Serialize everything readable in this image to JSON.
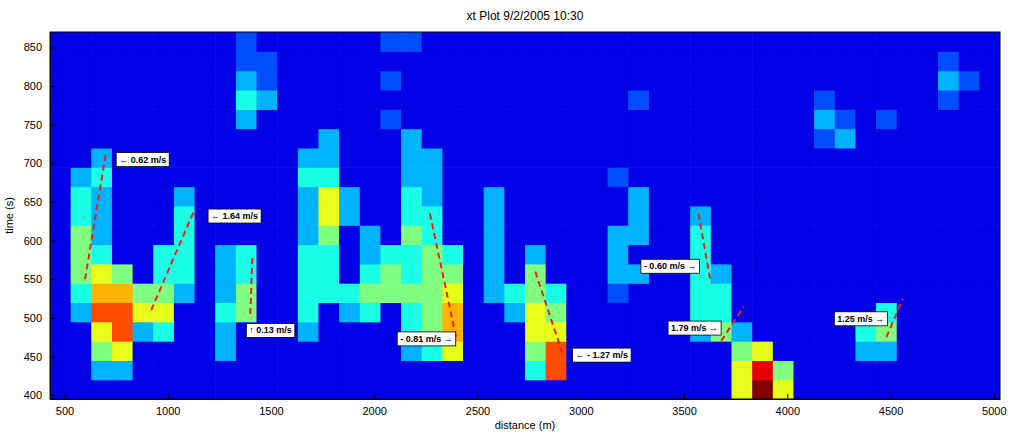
{
  "chart_data": {
    "type": "heatmap",
    "title": "xt Plot 9/2/2005 10:30",
    "x_label": "distance (m)",
    "y_label": "time (s)",
    "xlim": [
      430,
      5030
    ],
    "ylim": [
      395,
      870
    ],
    "xticks": [
      500,
      1000,
      1500,
      2000,
      2500,
      3000,
      3500,
      4000,
      4500,
      5000
    ],
    "yticks": [
      400,
      450,
      500,
      550,
      600,
      650,
      700,
      750,
      800,
      850
    ],
    "color": "jet",
    "line_style": "dashed",
    "zlim": [
      0,
      10
    ],
    "x_bins": [
      430,
      530,
      630,
      730,
      830,
      930,
      1030,
      1130,
      1230,
      1330,
      1430,
      1530,
      1630,
      1730,
      1830,
      1930,
      2030,
      2130,
      2230,
      2330,
      2430,
      2530,
      2630,
      2730,
      2830,
      2930,
      3030,
      3130,
      3230,
      3330,
      3430,
      3530,
      3630,
      3730,
      3830,
      3930,
      4030,
      4130,
      4230,
      4330,
      4430,
      4530,
      4630,
      4730,
      4830,
      4930,
      5030
    ],
    "y_bins": [
      395,
      420,
      445,
      470,
      495,
      520,
      545,
      570,
      595,
      620,
      645,
      670,
      695,
      720,
      745,
      770,
      795,
      820,
      845,
      870
    ],
    "values": [
      [
        1,
        1,
        1,
        1,
        1,
        1,
        1,
        1,
        1,
        1,
        1,
        1,
        1,
        1,
        1,
        1,
        1,
        1,
        1,
        1,
        1,
        1,
        1,
        1,
        1,
        1,
        1,
        1,
        1,
        1,
        1,
        1,
        1,
        6,
        10,
        6,
        1,
        1,
        1,
        1,
        1,
        1,
        1,
        1,
        1,
        1
      ],
      [
        1,
        1,
        3,
        3,
        1,
        1,
        1,
        1,
        1,
        1,
        1,
        1,
        1,
        1,
        1,
        1,
        1,
        1,
        1,
        1,
        1,
        1,
        1,
        4,
        8,
        1,
        1,
        1,
        1,
        1,
        1,
        1,
        1,
        6,
        9,
        5,
        1,
        1,
        1,
        1,
        1,
        1,
        1,
        1,
        1,
        1
      ],
      [
        1,
        1,
        5,
        6,
        1,
        1,
        1,
        1,
        3,
        1,
        1,
        1,
        1,
        1,
        1,
        1,
        1,
        3,
        4,
        6,
        1,
        1,
        1,
        5,
        8,
        1,
        1,
        1,
        1,
        1,
        1,
        1,
        1,
        5,
        6,
        1,
        1,
        1,
        1,
        3,
        3,
        1,
        1,
        1,
        1,
        1
      ],
      [
        1,
        1,
        6,
        8,
        3,
        4,
        1,
        1,
        3,
        1,
        1,
        1,
        3,
        1,
        1,
        1,
        1,
        4,
        5,
        7,
        1,
        1,
        1,
        6,
        6,
        1,
        1,
        1,
        1,
        1,
        1,
        3,
        5,
        3,
        1,
        1,
        1,
        1,
        1,
        4,
        5,
        1,
        1,
        1,
        1,
        1
      ],
      [
        1,
        3,
        8,
        8,
        6,
        6,
        1,
        1,
        4,
        5,
        1,
        1,
        4,
        1,
        3,
        4,
        1,
        4,
        5,
        7,
        1,
        1,
        3,
        6,
        5,
        1,
        1,
        1,
        1,
        1,
        1,
        4,
        4,
        1,
        1,
        1,
        1,
        1,
        1,
        1,
        4,
        1,
        1,
        1,
        1,
        1
      ],
      [
        1,
        4,
        7,
        7,
        5,
        5,
        3,
        1,
        3,
        5,
        1,
        1,
        4,
        4,
        4,
        5,
        5,
        5,
        5,
        6,
        1,
        3,
        4,
        5,
        4,
        1,
        1,
        2,
        1,
        1,
        1,
        4,
        4,
        1,
        1,
        1,
        1,
        1,
        1,
        1,
        1,
        1,
        1,
        1,
        1,
        1
      ],
      [
        1,
        5,
        6,
        5,
        1,
        4,
        4,
        1,
        3,
        4,
        1,
        1,
        4,
        4,
        1,
        4,
        5,
        4,
        5,
        5,
        1,
        3,
        1,
        5,
        1,
        1,
        1,
        3,
        3,
        1,
        1,
        4,
        3,
        1,
        1,
        1,
        1,
        1,
        1,
        1,
        1,
        1,
        1,
        1,
        1,
        1
      ],
      [
        1,
        5,
        4,
        1,
        1,
        4,
        4,
        1,
        3,
        4,
        1,
        1,
        4,
        4,
        1,
        3,
        4,
        4,
        5,
        4,
        1,
        3,
        1,
        3,
        1,
        1,
        1,
        3,
        1,
        1,
        1,
        4,
        1,
        1,
        1,
        1,
        1,
        1,
        1,
        1,
        1,
        1,
        1,
        1,
        1,
        1
      ],
      [
        1,
        5,
        3,
        1,
        1,
        1,
        4,
        1,
        1,
        1,
        1,
        1,
        3,
        5,
        1,
        3,
        1,
        5,
        4,
        1,
        1,
        3,
        1,
        1,
        1,
        1,
        1,
        3,
        3,
        1,
        1,
        4,
        1,
        1,
        1,
        1,
        1,
        1,
        1,
        1,
        1,
        1,
        1,
        1,
        1,
        1
      ],
      [
        1,
        4,
        3,
        1,
        1,
        1,
        4,
        1,
        1,
        1,
        1,
        1,
        3,
        6,
        3,
        1,
        1,
        4,
        4,
        1,
        1,
        3,
        1,
        1,
        1,
        1,
        1,
        1,
        3,
        1,
        1,
        3,
        1,
        1,
        1,
        1,
        1,
        1,
        1,
        1,
        1,
        1,
        1,
        1,
        1,
        1
      ],
      [
        1,
        4,
        3,
        1,
        1,
        1,
        3,
        1,
        1,
        1,
        1,
        1,
        3,
        6,
        3,
        1,
        1,
        4,
        3,
        1,
        1,
        3,
        1,
        1,
        1,
        1,
        1,
        1,
        3,
        1,
        1,
        1,
        1,
        1,
        1,
        1,
        1,
        1,
        1,
        1,
        1,
        1,
        1,
        1,
        1,
        1
      ],
      [
        1,
        3,
        4,
        1,
        1,
        1,
        1,
        1,
        1,
        1,
        1,
        1,
        4,
        4,
        1,
        1,
        1,
        3,
        3,
        1,
        1,
        1,
        1,
        1,
        1,
        1,
        1,
        2,
        1,
        1,
        1,
        1,
        1,
        1,
        1,
        1,
        1,
        1,
        1,
        1,
        1,
        1,
        1,
        1,
        1,
        1
      ],
      [
        1,
        1,
        3,
        1,
        1,
        1,
        1,
        1,
        1,
        1,
        1,
        1,
        3,
        3,
        1,
        1,
        1,
        3,
        3,
        1,
        1,
        1,
        1,
        1,
        1,
        1,
        1,
        1,
        1,
        1,
        1,
        1,
        1,
        1,
        1,
        1,
        1,
        1,
        1,
        1,
        1,
        1,
        1,
        1,
        1,
        1
      ],
      [
        1,
        1,
        1,
        1,
        1,
        1,
        1,
        1,
        1,
        1,
        1,
        1,
        1,
        3,
        1,
        1,
        1,
        3,
        1,
        1,
        1,
        1,
        1,
        1,
        1,
        1,
        1,
        1,
        1,
        1,
        1,
        1,
        1,
        1,
        1,
        1,
        1,
        2,
        3,
        1,
        1,
        1,
        1,
        1,
        1,
        1
      ],
      [
        1,
        1,
        1,
        1,
        1,
        1,
        1,
        1,
        1,
        3,
        1,
        1,
        1,
        1,
        1,
        1,
        2,
        1,
        1,
        1,
        1,
        1,
        1,
        1,
        1,
        1,
        1,
        1,
        1,
        1,
        1,
        1,
        1,
        1,
        1,
        1,
        1,
        3,
        2,
        1,
        2,
        1,
        1,
        1,
        1,
        1
      ],
      [
        1,
        1,
        1,
        1,
        1,
        1,
        1,
        1,
        1,
        4,
        3,
        1,
        1,
        1,
        1,
        1,
        1,
        1,
        1,
        1,
        1,
        1,
        1,
        1,
        1,
        1,
        1,
        1,
        2,
        1,
        1,
        1,
        1,
        1,
        1,
        1,
        1,
        2,
        1,
        1,
        1,
        1,
        1,
        2,
        1,
        1
      ],
      [
        1,
        1,
        1,
        1,
        1,
        1,
        1,
        1,
        1,
        3,
        2,
        1,
        1,
        1,
        1,
        1,
        2,
        1,
        1,
        1,
        1,
        1,
        1,
        1,
        1,
        1,
        1,
        1,
        1,
        1,
        1,
        1,
        1,
        1,
        1,
        1,
        1,
        1,
        1,
        1,
        1,
        1,
        1,
        3,
        2,
        1
      ],
      [
        1,
        1,
        1,
        1,
        1,
        1,
        1,
        1,
        1,
        2,
        2,
        1,
        1,
        1,
        1,
        1,
        1,
        1,
        1,
        1,
        1,
        1,
        1,
        1,
        1,
        1,
        1,
        1,
        1,
        1,
        1,
        1,
        1,
        1,
        1,
        1,
        1,
        1,
        1,
        1,
        1,
        1,
        1,
        2,
        1,
        1
      ],
      [
        1,
        1,
        1,
        1,
        1,
        1,
        1,
        1,
        1,
        2,
        1,
        1,
        1,
        1,
        1,
        1,
        2,
        2,
        1,
        1,
        1,
        1,
        1,
        1,
        1,
        1,
        1,
        1,
        1,
        1,
        1,
        1,
        1,
        1,
        1,
        1,
        1,
        1,
        1,
        1,
        1,
        1,
        1,
        1,
        1,
        1
      ]
    ],
    "annotations": [
      {
        "text": "← 0.62 m/s",
        "x": [
          600,
          700
        ],
        "y": [
          550,
          712
        ],
        "label_x": 765,
        "label_y": 705
      },
      {
        "text": "← 1.64 m/s",
        "x": [
          920,
          1130
        ],
        "y": [
          510,
          640
        ],
        "label_x": 1210,
        "label_y": 632
      },
      {
        "text": "↑ 0.13 m/s",
        "x": [
          1400,
          1410
        ],
        "y": [
          505,
          580
        ],
        "label_x": 1395,
        "label_y": 484
      },
      {
        "text": "- 0.81 m/s →",
        "x": [
          2270,
          2400
        ],
        "y": [
          635,
          470
        ],
        "label_x": 2380,
        "label_y": 473
      },
      {
        "text": "← - 1.27 m/s",
        "x": [
          2780,
          2910
        ],
        "y": [
          560,
          455
        ],
        "label_x": 2975,
        "label_y": 452
      },
      {
        "text": "- 0.60 m/s →",
        "x": [
          3570,
          3630
        ],
        "y": [
          635,
          545
        ],
        "label_x": 3560,
        "label_y": 567
      },
      {
        "text": "1.79 m/s →",
        "x": [
          3680,
          3790
        ],
        "y": [
          470,
          515
        ],
        "label_x": 3665,
        "label_y": 487
      },
      {
        "text": "1.25 m/s →",
        "x": [
          4480,
          4560
        ],
        "y": [
          475,
          525
        ],
        "label_x": 4470,
        "label_y": 499
      }
    ]
  }
}
